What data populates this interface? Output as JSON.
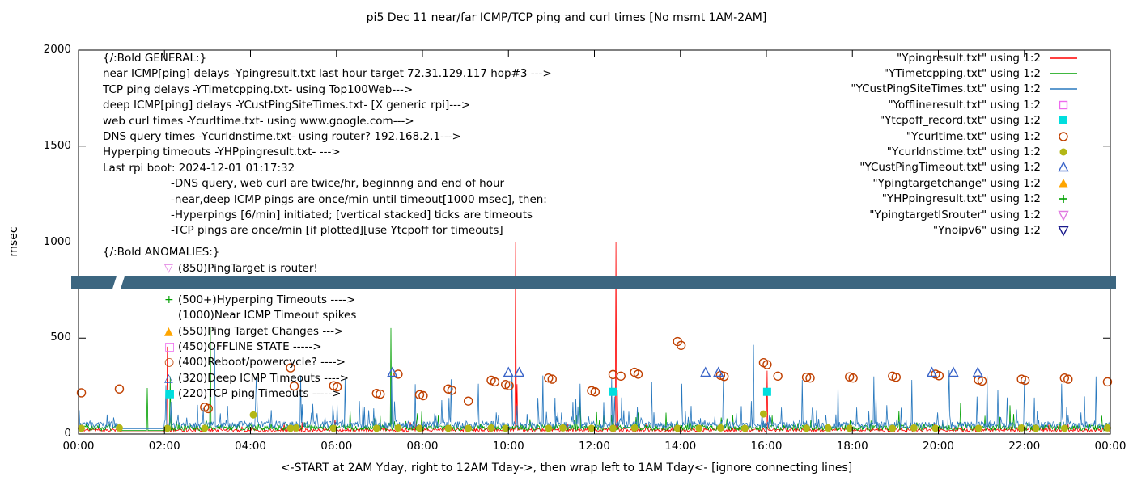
{
  "title": "pi5 Dec 11  near/far ICMP/TCP ping and curl times [No msmt 1AM-2AM]",
  "xlabel": "<-START at 2AM Yday, right to 12AM Tday->, then wrap left to 1AM Tday<- [ignore connecting lines]",
  "ylabel": "msec",
  "general": {
    "header": "{/:Bold GENERAL:}",
    "lines": [
      "near ICMP[ping] delays -Ypingresult.txt last hour target 72.31.129.117 hop#3 --->",
      "TCP ping delays -YTimetcpping.txt- using Top100Web--->",
      "deep ICMP[ping] delays -YCustPingSiteTimes.txt- [X generic rpi]--->",
      "web curl times -Ycurltime.txt- using www.google.com--->",
      "DNS query times -Ycurldnstime.txt- using router? 192.168.2.1--->",
      "Hyperping timeouts -YHPpingresult.txt- --->",
      "Last rpi boot: 2024-12-01 01:17:32"
    ],
    "sub_lines": [
      "-DNS query, web curl are twice/hr, beginnng and end of hour",
      "-near,deep ICMP pings are once/min until timeout[1000 msec], then:",
      "-Hyperpings [6/min] initiated; [vertical stacked] ticks are timeouts",
      "-TCP pings are once/min [if plotted][use Ytcpoff for timeouts]"
    ]
  },
  "anomalies": {
    "header": "{/:Bold ANOMALIES:}",
    "items": [
      {
        "marker": "triangle-down-open",
        "color": "#e07ae0",
        "text": "(850)PingTarget is router!"
      },
      {
        "marker": "triangle-down-open",
        "color": "#1a1a8c",
        "text": ""
      },
      {
        "marker": "plus",
        "color": "#00a000",
        "text": "(500+)Hyperping Timeouts ---->"
      },
      {
        "marker": "none",
        "color": "",
        "text": "(1000)Near ICMP Timeout spikes"
      },
      {
        "marker": "triangle-up-filled",
        "color": "#ffa500",
        "text": "(550)Ping Target Changes --->"
      },
      {
        "marker": "square-open",
        "color": "#ee6aee",
        "text": "(450)OFFLINE STATE ----->"
      },
      {
        "marker": "circle-open",
        "color": "#c04000",
        "text": "(400)Reboot/powercycle? ---->"
      },
      {
        "marker": "triangle-up-open",
        "color": "#3a64c8",
        "text": "(320)Deep ICMP Timeouts ---->"
      },
      {
        "marker": "square-filled",
        "color": "#00dede",
        "text": "(220)TCP ping Timeouts ----->"
      }
    ]
  },
  "legend": [
    {
      "label": "\"Ypingresult.txt\" using 1:2",
      "color": "#ff0000",
      "marker": "line"
    },
    {
      "label": "\"YTimetcpping.txt\" using 1:2",
      "color": "#00a000",
      "marker": "line"
    },
    {
      "label": "\"YCustPingSiteTimes.txt\" using 1:2",
      "color": "#2878be",
      "marker": "line"
    },
    {
      "label": "\"Yofflineresult.txt\" using 1:2",
      "color": "#ee6aee",
      "marker": "square-open"
    },
    {
      "label": "\"Ytcpoff_record.txt\" using 1:2",
      "color": "#00dede",
      "marker": "square-filled"
    },
    {
      "label": "\"Ycurltime.txt\" using 1:2",
      "color": "#c04000",
      "marker": "circle-open"
    },
    {
      "label": "\"Ycurldnstime.txt\" using 1:2",
      "color": "#b3b716",
      "marker": "circle-filled"
    },
    {
      "label": "\"YCustPingTimeout.txt\" using 1:2",
      "color": "#3a64c8",
      "marker": "triangle-up-open"
    },
    {
      "label": "\"Ypingtargetchange\" using 1:2",
      "color": "#ffa500",
      "marker": "triangle-up-filled"
    },
    {
      "label": "\"YHPpingresult.txt\" using 1:2",
      "color": "#00a000",
      "marker": "plus"
    },
    {
      "label": "\"YpingtargetISrouter\" using 1:2",
      "color": "#e07ae0",
      "marker": "triangle-down-open"
    },
    {
      "label": "\"Ynoipv6\" using 1:2",
      "color": "#1a1a8c",
      "marker": "triangle-down-open"
    }
  ],
  "chart_data": {
    "type": "line+scatter",
    "title": "pi5 Dec 11  near/far ICMP/TCP ping and curl times [No msmt 1AM-2AM]",
    "xlabel": "<-START at 2AM Yday, right to 12AM Tday->, then wrap left to 1AM Tday<- [ignore connecting lines]",
    "ylabel": "msec",
    "ylim": [
      0,
      2000
    ],
    "x_range": [
      0,
      1440
    ],
    "ytick_values": [
      0,
      500,
      1000,
      1500,
      2000
    ],
    "ytick_labels": [
      "0",
      "500",
      "1000",
      "1500",
      "2000"
    ],
    "xtick_minutes": [
      0,
      120,
      240,
      360,
      480,
      600,
      720,
      840,
      960,
      1080,
      1200,
      1320,
      1440
    ],
    "xtick_labels": [
      "00:00",
      "02:00",
      "04:00",
      "06:00",
      "08:00",
      "10:00",
      "12:00",
      "14:00",
      "16:00",
      "18:00",
      "20:00",
      "22:00",
      "00:00"
    ],
    "no_measurement_window_minutes": [
      60,
      120
    ],
    "band": {
      "v_low": 760,
      "v_high": 820,
      "color": "#3c6680"
    },
    "noise_series": [
      {
        "name": "Ypingresult.txt",
        "color": "#ff0000",
        "seed": 11,
        "base": 12,
        "jitter": 18,
        "spike_prob": 0.04,
        "spike_scale": 80,
        "events": [
          [
            124,
            455
          ],
          [
            610,
            1000
          ],
          [
            612,
            260
          ],
          [
            750,
            1000
          ],
          [
            752,
            230
          ],
          [
            961,
            330
          ]
        ]
      },
      {
        "name": "YTimetcpping.txt",
        "color": "#00a000",
        "seed": 22,
        "base": 18,
        "jitter": 30,
        "spike_prob": 0.07,
        "spike_scale": 120,
        "events": [
          [
            96,
            240
          ],
          [
            128,
            300
          ],
          [
            184,
            560
          ],
          [
            436,
            552
          ],
          [
            700,
            180
          ],
          [
            1231,
            160
          ],
          [
            1300,
            150
          ]
        ]
      },
      {
        "name": "YCustPingSiteTimes.txt",
        "color": "#2878be",
        "seed": 33,
        "base": 28,
        "jitter": 38,
        "spike_prob": 0.13,
        "spike_scale": 200,
        "events": [
          [
            122,
            255
          ],
          [
            190,
            460
          ],
          [
            248,
            300
          ],
          [
            310,
            305
          ],
          [
            372,
            285
          ],
          [
            437,
            300
          ],
          [
            470,
            260
          ],
          [
            520,
            285
          ],
          [
            558,
            262
          ],
          [
            605,
            312
          ],
          [
            648,
            305
          ],
          [
            700,
            262
          ],
          [
            744,
            292
          ],
          [
            800,
            272
          ],
          [
            842,
            262
          ],
          [
            900,
            305
          ],
          [
            942,
            465
          ],
          [
            1010,
            282
          ],
          [
            1060,
            262
          ],
          [
            1110,
            300
          ],
          [
            1163,
            282
          ],
          [
            1215,
            332
          ],
          [
            1268,
            302
          ],
          [
            1320,
            282
          ],
          [
            1372,
            262
          ],
          [
            1420,
            300
          ]
        ]
      }
    ],
    "scatter_series": [
      {
        "name": "Ycurltime.txt",
        "marker": "circle-open",
        "color": "#c04000",
        "points": [
          [
            4,
            215
          ],
          [
            57,
            235
          ],
          [
            176,
            140
          ],
          [
            181,
            133
          ],
          [
            296,
            345
          ],
          [
            301,
            250
          ],
          [
            356,
            252
          ],
          [
            361,
            246
          ],
          [
            416,
            212
          ],
          [
            421,
            208
          ],
          [
            446,
            312
          ],
          [
            476,
            205
          ],
          [
            481,
            200
          ],
          [
            516,
            235
          ],
          [
            521,
            228
          ],
          [
            544,
            172
          ],
          [
            576,
            280
          ],
          [
            581,
            272
          ],
          [
            596,
            258
          ],
          [
            601,
            252
          ],
          [
            656,
            292
          ],
          [
            661,
            286
          ],
          [
            716,
            226
          ],
          [
            721,
            220
          ],
          [
            746,
            310
          ],
          [
            757,
            302
          ],
          [
            776,
            322
          ],
          [
            781,
            312
          ],
          [
            836,
            482
          ],
          [
            841,
            462
          ],
          [
            896,
            306
          ],
          [
            901,
            300
          ],
          [
            956,
            372
          ],
          [
            961,
            362
          ],
          [
            976,
            302
          ],
          [
            1016,
            296
          ],
          [
            1021,
            292
          ],
          [
            1076,
            298
          ],
          [
            1081,
            292
          ],
          [
            1136,
            302
          ],
          [
            1141,
            296
          ],
          [
            1196,
            312
          ],
          [
            1201,
            304
          ],
          [
            1256,
            282
          ],
          [
            1261,
            276
          ],
          [
            1316,
            286
          ],
          [
            1321,
            280
          ],
          [
            1376,
            292
          ],
          [
            1381,
            286
          ],
          [
            1436,
            272
          ]
        ]
      },
      {
        "name": "Ycurldnstime.txt",
        "marker": "circle-filled",
        "color": "#b3b716",
        "points": [
          [
            4,
            30
          ],
          [
            57,
            32
          ],
          [
            124,
            30
          ],
          [
            176,
            30
          ],
          [
            244,
            100
          ],
          [
            296,
            30
          ],
          [
            304,
            32
          ],
          [
            356,
            30
          ],
          [
            416,
            30
          ],
          [
            446,
            32
          ],
          [
            476,
            30
          ],
          [
            516,
            30
          ],
          [
            544,
            30
          ],
          [
            576,
            32
          ],
          [
            596,
            30
          ],
          [
            656,
            30
          ],
          [
            676,
            32
          ],
          [
            716,
            30
          ],
          [
            746,
            30
          ],
          [
            776,
            32
          ],
          [
            836,
            30
          ],
          [
            866,
            30
          ],
          [
            896,
            32
          ],
          [
            930,
            30
          ],
          [
            956,
            105
          ],
          [
            1016,
            30
          ],
          [
            1046,
            32
          ],
          [
            1076,
            30
          ],
          [
            1136,
            30
          ],
          [
            1166,
            32
          ],
          [
            1196,
            30
          ],
          [
            1256,
            30
          ],
          [
            1316,
            32
          ],
          [
            1336,
            30
          ],
          [
            1376,
            30
          ],
          [
            1436,
            32
          ]
        ]
      },
      {
        "name": "YCustPingTimeout.txt",
        "marker": "triangle-up-open",
        "color": "#3a64c8",
        "points": [
          [
            438,
            320
          ],
          [
            600,
            320
          ],
          [
            615,
            320
          ],
          [
            875,
            320
          ],
          [
            893,
            320
          ],
          [
            1191,
            320
          ],
          [
            1221,
            320
          ],
          [
            1255,
            320
          ]
        ]
      },
      {
        "name": "Ytcpoff_record.txt",
        "marker": "square-filled",
        "color": "#00dede",
        "points": [
          [
            746,
            220
          ],
          [
            961,
            220
          ]
        ]
      }
    ]
  }
}
